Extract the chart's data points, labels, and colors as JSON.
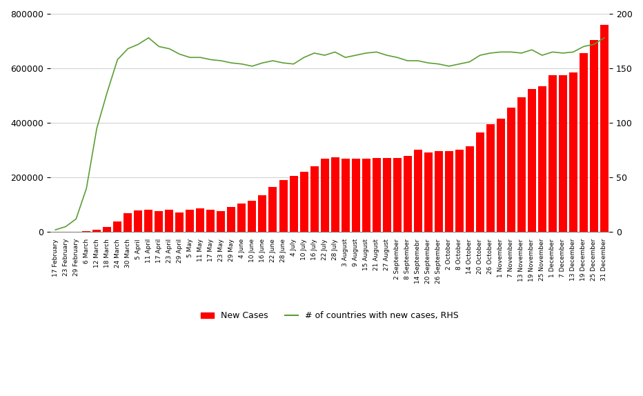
{
  "bar_color": "#ff0000",
  "line_color": "#5a9e32",
  "background_color": "#ffffff",
  "ylim_left": [
    0,
    800000
  ],
  "ylim_right": [
    0,
    200
  ],
  "yticks_left": [
    0,
    200000,
    400000,
    600000,
    800000
  ],
  "yticks_right": [
    0,
    50,
    100,
    150,
    200
  ],
  "legend_labels": [
    "New Cases",
    "# of countries with new cases, RHS"
  ],
  "x_labels": [
    "17 February",
    "23 February",
    "29 February",
    "6 March",
    "12 March",
    "18 March",
    "24 March",
    "30 March",
    "5 April",
    "11 April",
    "17 April",
    "23 April",
    "29 April",
    "5 May",
    "11 May",
    "17 May",
    "23 May",
    "29 May",
    "4 June",
    "10 June",
    "16 June",
    "22 June",
    "28 June",
    "4 July",
    "10 July",
    "16 July",
    "22 July",
    "28 July",
    "3 August",
    "9 August",
    "15 August",
    "21 August",
    "27 August",
    "2 September",
    "8 September",
    "14 Septemebr",
    "20 September",
    "26 September",
    "2 October",
    "8 October",
    "14 October",
    "20 October",
    "26 October",
    "1 November",
    "7 November",
    "13 November",
    "19 November",
    "25 November",
    "1 December",
    "7 December",
    "13 December",
    "19 December",
    "25 December",
    "31 December"
  ],
  "new_cases": [
    500,
    800,
    1500,
    4000,
    8000,
    18000,
    38000,
    68000,
    78000,
    82000,
    76000,
    82000,
    72000,
    82000,
    86000,
    82000,
    77000,
    92000,
    105000,
    115000,
    135000,
    165000,
    190000,
    205000,
    220000,
    240000,
    268000,
    275000,
    268000,
    268000,
    268000,
    272000,
    272000,
    272000,
    278000,
    302000,
    292000,
    298000,
    298000,
    302000,
    315000,
    365000,
    395000,
    415000,
    455000,
    495000,
    525000,
    535000,
    575000,
    575000,
    585000,
    655000,
    705000,
    760000
  ],
  "countries_count": [
    2,
    5,
    12,
    40,
    95,
    128,
    158,
    168,
    172,
    178,
    170,
    168,
    163,
    160,
    160,
    158,
    157,
    155,
    154,
    152,
    155,
    157,
    155,
    154,
    160,
    164,
    162,
    165,
    160,
    162,
    164,
    165,
    162,
    160,
    157,
    157,
    155,
    154,
    152,
    154,
    156,
    162,
    164,
    165,
    165,
    164,
    167,
    162,
    165,
    164,
    165,
    170,
    172,
    178
  ]
}
